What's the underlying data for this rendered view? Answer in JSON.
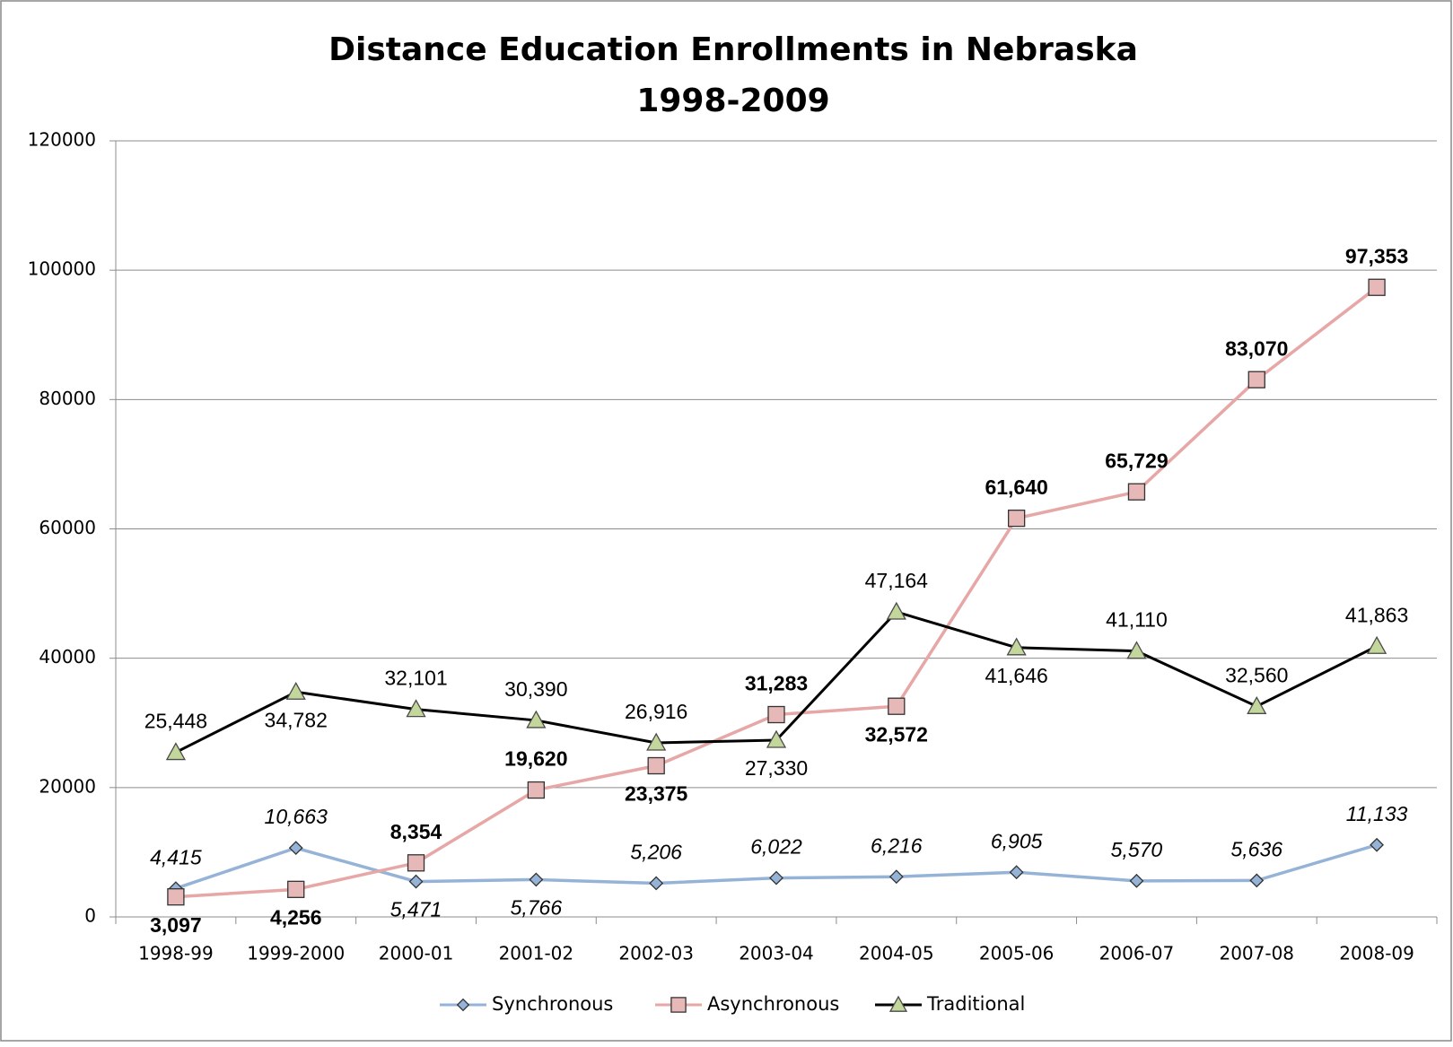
{
  "chart_data": {
    "type": "line",
    "title": "Distance Education Enrollments in Nebraska",
    "subtitle": "1998-2009",
    "categories": [
      "1998-99",
      "1999-2000",
      "2000-01",
      "2001-02",
      "2002-03",
      "2003-04",
      "2004-05",
      "2005-06",
      "2006-07",
      "2007-08",
      "2008-09"
    ],
    "ylim": [
      0,
      120000
    ],
    "yticks": [
      0,
      20000,
      40000,
      60000,
      80000,
      100000,
      120000
    ],
    "grid": true,
    "legend": "bottom",
    "series": [
      {
        "name": "Synchronous",
        "color": "#95b3d7",
        "marker": "diamond",
        "marker_color": "#95b3d7",
        "values": [
          4415,
          10663,
          5471,
          5766,
          5206,
          6022,
          6216,
          6905,
          5570,
          5636,
          11133
        ],
        "value_labels": [
          "4,415",
          "10,663",
          "5,471",
          "5,766",
          "5,206",
          "6,022",
          "6,216",
          "6,905",
          "5,570",
          "5,636",
          "11,133"
        ]
      },
      {
        "name": "Asynchronous",
        "color": "#e6a7a6",
        "marker": "square",
        "marker_color": "#e6b9b8",
        "values": [
          3097,
          4256,
          8354,
          19620,
          23375,
          31283,
          32572,
          61640,
          65729,
          83070,
          97353
        ],
        "value_labels": [
          "3,097",
          "4,256",
          "8,354",
          "19,620",
          "23,375",
          "31,283",
          "32,572",
          "61,640",
          "65,729",
          "83,070",
          "97,353"
        ]
      },
      {
        "name": "Traditional",
        "color": "#000000",
        "marker": "triangle",
        "marker_color": "#c3d69b",
        "values": [
          25448,
          34782,
          32101,
          30390,
          26916,
          27330,
          47164,
          41646,
          41110,
          32560,
          41863
        ],
        "value_labels": [
          "25,448",
          "34,782",
          "32,101",
          "30,390",
          "26,916",
          "27,330",
          "47,164",
          "41,646",
          "41,110",
          "32,560",
          "41,863"
        ]
      }
    ]
  }
}
